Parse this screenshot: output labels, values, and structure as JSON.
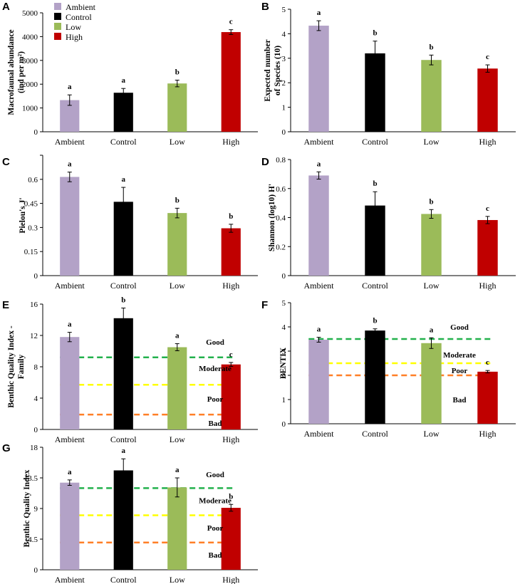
{
  "legend": [
    {
      "label": "Ambient",
      "color": "#b3a2c7"
    },
    {
      "label": "Control",
      "color": "#000000"
    },
    {
      "label": "Low",
      "color": "#9bbb59"
    },
    {
      "label": "High",
      "color": "#c00000"
    }
  ],
  "chart_data": [
    {
      "panel": "A",
      "type": "bar",
      "categories": [
        "Ambient",
        "Control",
        "Low",
        "High"
      ],
      "values": [
        1330,
        1640,
        2030,
        4190
      ],
      "errors": [
        220,
        180,
        140,
        100
      ],
      "sig": [
        "a",
        "a",
        "b",
        "c"
      ],
      "ylabel": [
        "Macrofaunal abundance",
        "(ind per m²)"
      ],
      "ylim": [
        0,
        5000
      ],
      "ticks": [
        0,
        1000,
        2000,
        3000,
        4000,
        5000
      ],
      "tick_labels": [
        "0",
        "1000",
        "2000",
        "3000",
        "4000",
        "5000"
      ],
      "thresholds": [],
      "zones": []
    },
    {
      "panel": "B",
      "type": "bar",
      "categories": [
        "Ambient",
        "Control",
        "Low",
        "High"
      ],
      "values": [
        4.33,
        3.2,
        2.93,
        2.58
      ],
      "errors": [
        0.2,
        0.5,
        0.2,
        0.15
      ],
      "sig": [
        "a",
        "b",
        "b",
        "c"
      ],
      "ylabel": [
        "Expected number",
        "of Species (10)"
      ],
      "ylim": [
        0,
        5
      ],
      "ticks": [
        0,
        1,
        2,
        3,
        4,
        5
      ],
      "tick_labels": [
        "0",
        "1",
        "2",
        "3",
        "4",
        "5"
      ],
      "thresholds": [],
      "zones": []
    },
    {
      "panel": "C",
      "type": "bar",
      "categories": [
        "Ambient",
        "Control",
        "Low",
        "High"
      ],
      "values": [
        0.615,
        0.46,
        0.39,
        0.295
      ],
      "errors": [
        0.03,
        0.09,
        0.03,
        0.025
      ],
      "sig": [
        "a",
        "a",
        "b",
        "b"
      ],
      "ylabel": [
        "Pielou's  J'"
      ],
      "ylim": [
        0,
        0.75
      ],
      "ticks": [
        0,
        0.15,
        0.3,
        0.45,
        0.6,
        0.75
      ],
      "tick_labels": [
        "0",
        "0.15",
        "0.3",
        "0.45",
        "0.6",
        ""
      ],
      "thresholds": [],
      "zones": []
    },
    {
      "panel": "D",
      "type": "bar",
      "categories": [
        "Ambient",
        "Control",
        "Low",
        "High"
      ],
      "values": [
        0.69,
        0.483,
        0.425,
        0.383
      ],
      "errors": [
        0.025,
        0.095,
        0.03,
        0.025
      ],
      "sig": [
        "a",
        "b",
        "b",
        "c"
      ],
      "ylabel": [
        "Shannon (log10) H'"
      ],
      "ylim": [
        0,
        0.8
      ],
      "ticks": [
        0,
        0.2,
        0.4,
        0.6,
        0.8
      ],
      "tick_labels": [
        "0",
        "0.2",
        "0.4",
        "0.6",
        "0.8"
      ],
      "thresholds": [],
      "zones": []
    },
    {
      "panel": "E",
      "type": "bar",
      "categories": [
        "Ambient",
        "Control",
        "Low",
        "High"
      ],
      "values": [
        11.8,
        14.2,
        10.5,
        8.3
      ],
      "errors": [
        0.6,
        1.3,
        0.45,
        0.25
      ],
      "sig": [
        "a",
        "b",
        "a",
        "c"
      ],
      "ylabel": [
        "Benthic Quality Index -",
        "Family"
      ],
      "ylim": [
        0,
        16
      ],
      "ticks": [
        0,
        4,
        8,
        12,
        16
      ],
      "tick_labels": [
        "0",
        "4",
        "8",
        "12",
        "16"
      ],
      "thresholds": [
        {
          "value": 9.2,
          "color": "#22b14c"
        },
        {
          "value": 5.7,
          "color": "#ffff00"
        },
        {
          "value": 1.9,
          "color": "#ff7f27"
        }
      ],
      "zones": [
        {
          "label": "Good",
          "value": 11.2
        },
        {
          "label": "Moderate",
          "value": 7.8
        },
        {
          "label": "Poor",
          "value": 3.9
        },
        {
          "label": "Bad",
          "value": 0.8
        }
      ]
    },
    {
      "panel": "F",
      "type": "bar",
      "categories": [
        "Ambient",
        "Control",
        "Low",
        "High"
      ],
      "values": [
        3.47,
        3.85,
        3.33,
        2.15
      ],
      "errors": [
        0.1,
        0.07,
        0.22,
        0.05
      ],
      "sig": [
        "a",
        "b",
        "a",
        "c"
      ],
      "ylabel": [
        "BENTIX"
      ],
      "ylim": [
        0,
        5
      ],
      "ticks": [
        0,
        1,
        2,
        3,
        4,
        5
      ],
      "tick_labels": [
        "0",
        "1",
        "2",
        "3",
        "4",
        "5"
      ],
      "thresholds": [
        {
          "value": 3.5,
          "color": "#22b14c"
        },
        {
          "value": 2.5,
          "color": "#ffff00"
        },
        {
          "value": 2.0,
          "color": "#ff7f27"
        }
      ],
      "zones": [
        {
          "label": "Good",
          "value": 4.0
        },
        {
          "label": "Moderate",
          "value": 2.85
        },
        {
          "label": "Poor",
          "value": 2.2
        },
        {
          "label": "Bad",
          "value": 1.0
        }
      ]
    },
    {
      "panel": "G",
      "type": "bar",
      "categories": [
        "Ambient",
        "Control",
        "Low",
        "High"
      ],
      "values": [
        12.8,
        14.6,
        12.1,
        9.1
      ],
      "errors": [
        0.4,
        1.7,
        1.4,
        0.5
      ],
      "sig": [
        "a",
        "a",
        "a",
        "b"
      ],
      "ylabel": [
        "Benthic Quality Index"
      ],
      "ylim": [
        0,
        18
      ],
      "ticks": [
        0,
        4.5,
        9,
        13.5,
        18
      ],
      "tick_labels": [
        "0",
        "4.5",
        "9",
        "13.5",
        "18"
      ],
      "thresholds": [
        {
          "value": 12.0,
          "color": "#22b14c"
        },
        {
          "value": 8.0,
          "color": "#ffff00"
        },
        {
          "value": 4.0,
          "color": "#ff7f27"
        }
      ],
      "zones": [
        {
          "label": "Good",
          "value": 14.0
        },
        {
          "label": "Moderate",
          "value": 10.2
        },
        {
          "label": "Poor",
          "value": 6.2
        },
        {
          "label": "Bad",
          "value": 2.2
        }
      ]
    }
  ]
}
